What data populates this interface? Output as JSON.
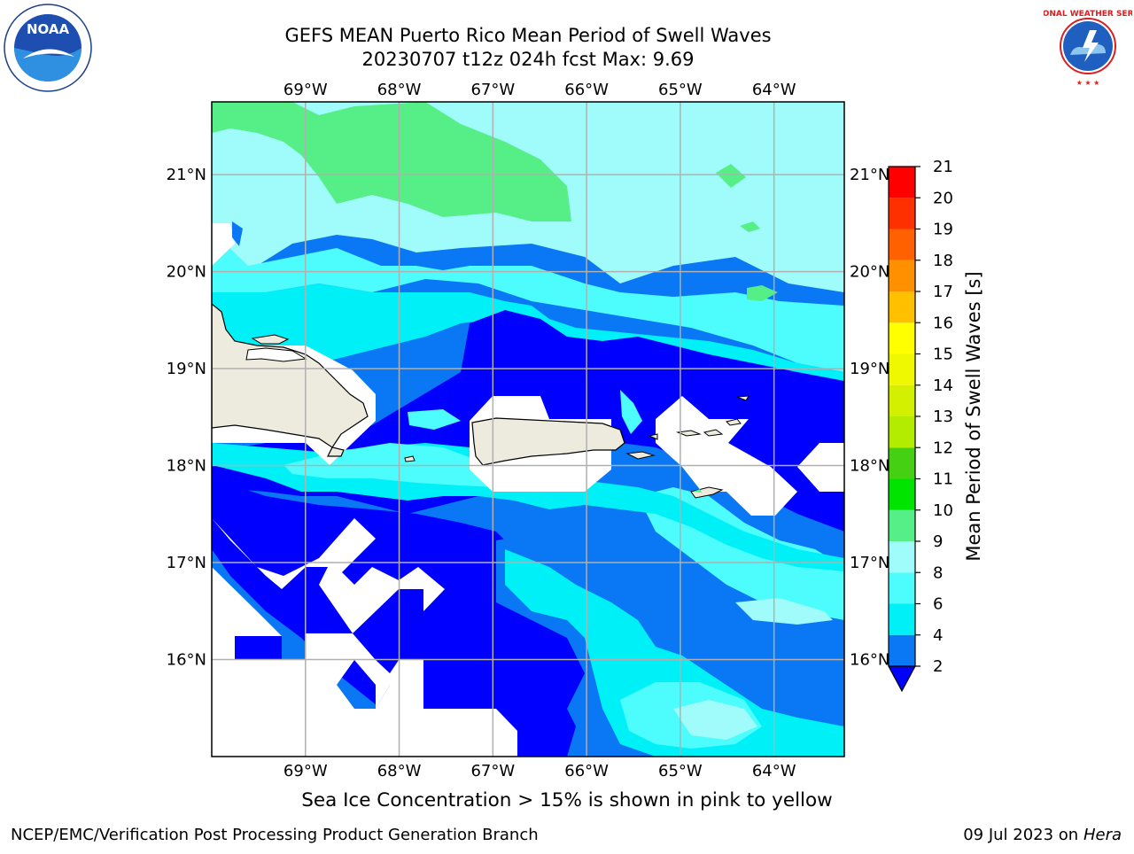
{
  "title": {
    "line1": "GEFS MEAN Puerto Rico Mean Period of Swell Waves",
    "line2": "20230707 t12z 024h fcst   Max: 9.69"
  },
  "logos": {
    "left": {
      "name": "noaa-logo",
      "text": "NOAA",
      "ring_text": "NATIONAL OCEANIC AND ATMOSPHERIC ADMINISTRATION · U.S. DEPARTMENT OF COMMERCE"
    },
    "right": {
      "name": "nws-logo",
      "ring_text": "NATIONAL WEATHER SERVICE"
    }
  },
  "map": {
    "region": "Puerto Rico",
    "longitude_labels": [
      "69°W",
      "68°W",
      "67°W",
      "66°W",
      "65°W",
      "64°W"
    ],
    "latitude_labels": [
      "21°N",
      "20°N",
      "19°N",
      "18°N",
      "17°N",
      "16°N"
    ],
    "longitudes": [
      -69,
      -68,
      -67,
      -66,
      -65,
      -64
    ],
    "latitudes": [
      21,
      20,
      19,
      18,
      17,
      16
    ],
    "extent": {
      "lon_min": -70.0,
      "lon_max": -63.25,
      "lat_min": 15.0,
      "lat_max": 21.75
    },
    "land_color": "#ecebdd",
    "grid_color": "#b0b0b0"
  },
  "colorbar": {
    "label": "Mean Period of Swell Waves [s]",
    "ticks": [
      "2",
      "4",
      "6",
      "8",
      "9",
      "10",
      "11",
      "12",
      "13",
      "14",
      "15",
      "16",
      "17",
      "18",
      "19",
      "20",
      "21"
    ],
    "levels": [
      {
        "range": "<2",
        "color": "#0000ff"
      },
      {
        "range": "2-4",
        "color": "#0a78f5"
      },
      {
        "range": "4-6",
        "color": "#00f0f8"
      },
      {
        "range": "6-8",
        "color": "#4dfcfc"
      },
      {
        "range": "8-9",
        "color": "#a0fcfa"
      },
      {
        "range": "9-10",
        "color": "#56ee86"
      },
      {
        "range": "10-11",
        "color": "#00e400"
      },
      {
        "range": "11-12",
        "color": "#46d014"
      },
      {
        "range": "12-13",
        "color": "#b4ec00"
      },
      {
        "range": "13-14",
        "color": "#d2f000"
      },
      {
        "range": "14-15",
        "color": "#f0f800"
      },
      {
        "range": "15-16",
        "color": "#ffff00"
      },
      {
        "range": "16-17",
        "color": "#ffc000"
      },
      {
        "range": "17-18",
        "color": "#ff9000"
      },
      {
        "range": "18-19",
        "color": "#ff6000"
      },
      {
        "range": "19-20",
        "color": "#ff3000"
      },
      {
        "range": "20-21",
        "color": "#ff0000"
      }
    ]
  },
  "notes": {
    "ice": "Sea Ice Concentration > 15% is shown in pink to yellow"
  },
  "footer": {
    "left": "NCEP/EMC/Verification Post Processing Product Generation Branch",
    "date": "09 Jul 2023 on ",
    "machine": "Hera"
  }
}
